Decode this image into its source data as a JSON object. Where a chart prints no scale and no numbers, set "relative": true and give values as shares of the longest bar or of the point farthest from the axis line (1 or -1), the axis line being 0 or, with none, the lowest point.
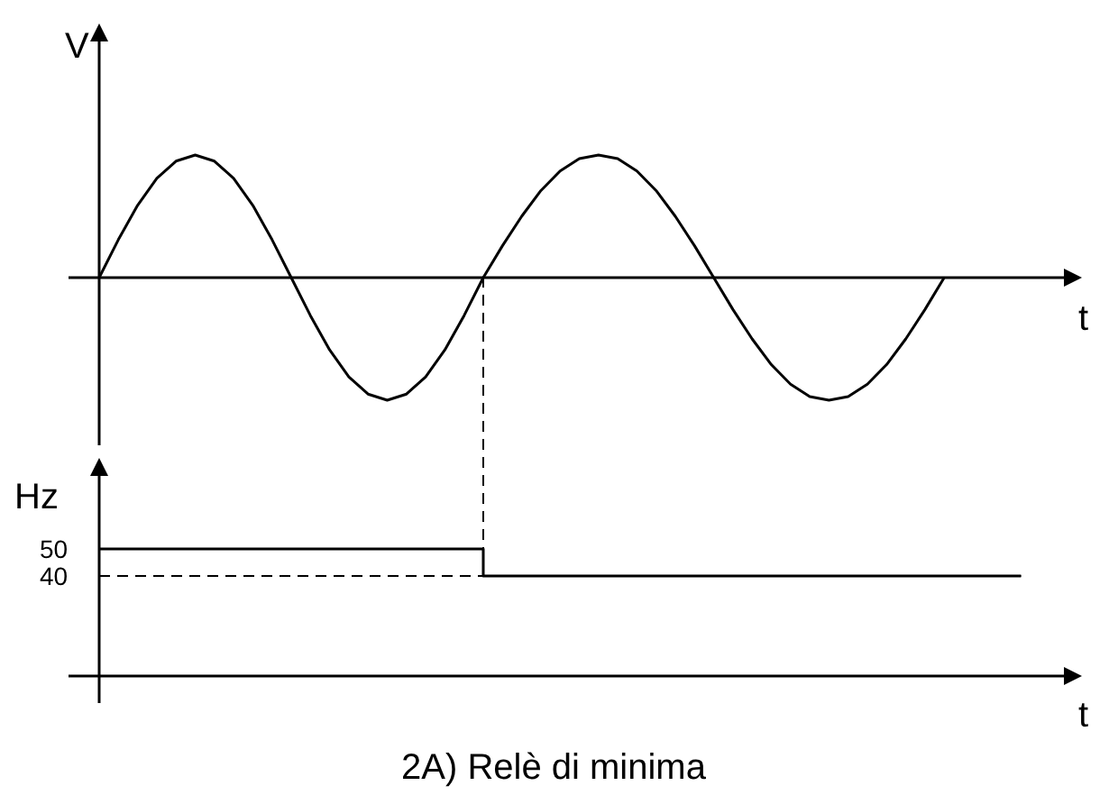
{
  "chart_data": [
    {
      "type": "line",
      "relative": true,
      "xlabel": "t",
      "ylabel": "V",
      "categories": [
        null,
        null,
        null,
        null,
        null,
        null,
        null,
        null,
        null,
        null,
        null,
        null,
        null,
        null,
        null,
        null,
        null,
        null,
        null,
        null,
        null,
        null,
        null,
        null,
        null,
        null,
        null,
        null,
        null,
        null,
        null,
        null,
        null,
        null,
        null,
        null,
        null,
        null,
        null,
        null,
        null,
        null,
        null,
        null,
        null
      ],
      "series": [
        {
          "color": "#000000",
          "values": [
            0,
            0.31,
            0.59,
            0.81,
            0.95,
            1,
            0.95,
            0.81,
            0.59,
            0.31,
            0,
            -0.31,
            -0.59,
            -0.81,
            -0.95,
            -1,
            -0.95,
            -0.81,
            -0.59,
            -0.31,
            0,
            0.26,
            0.5,
            0.71,
            0.87,
            0.97,
            1,
            0.97,
            0.87,
            0.71,
            0.5,
            0.26,
            0,
            -0.26,
            -0.5,
            -0.71,
            -0.87,
            -0.97,
            -1,
            -0.97,
            -0.87,
            -0.71,
            -0.5,
            -0.26,
            0
          ]
        }
      ]
    },
    {
      "type": "step",
      "xlabel": "t",
      "ylabel": "Hz",
      "categories": [
        null,
        null,
        null,
        null,
        null,
        null,
        null,
        null,
        null,
        null,
        null,
        null,
        null,
        null,
        null,
        null,
        null,
        null,
        null,
        null,
        null,
        null,
        null,
        null,
        null,
        null,
        null,
        null,
        null,
        null,
        null,
        null,
        null,
        null,
        null,
        null,
        null,
        null,
        null,
        null,
        null,
        null,
        null,
        null,
        null,
        null,
        null,
        null,
        null
      ],
      "series": [
        {
          "color": "#000000",
          "values": [
            50,
            50,
            50,
            50,
            50,
            50,
            50,
            50,
            50,
            50,
            50,
            50,
            50,
            50,
            50,
            50,
            50,
            50,
            50,
            50,
            40,
            40,
            40,
            40,
            40,
            40,
            40,
            40,
            40,
            40,
            40,
            40,
            40,
            40,
            40,
            40,
            40,
            40,
            40,
            40,
            40,
            40,
            40,
            40,
            40,
            40,
            40,
            40,
            40
          ]
        }
      ],
      "ylim": [
        3,
        77
      ],
      "yticks": [
        40,
        50
      ],
      "tick_labels": "y",
      "ref_lines": [
        {
          "axis": "y",
          "value": 40,
          "line_style": "dashed"
        }
      ],
      "annotations": [
        "2A) Relè di minima"
      ]
    }
  ]
}
